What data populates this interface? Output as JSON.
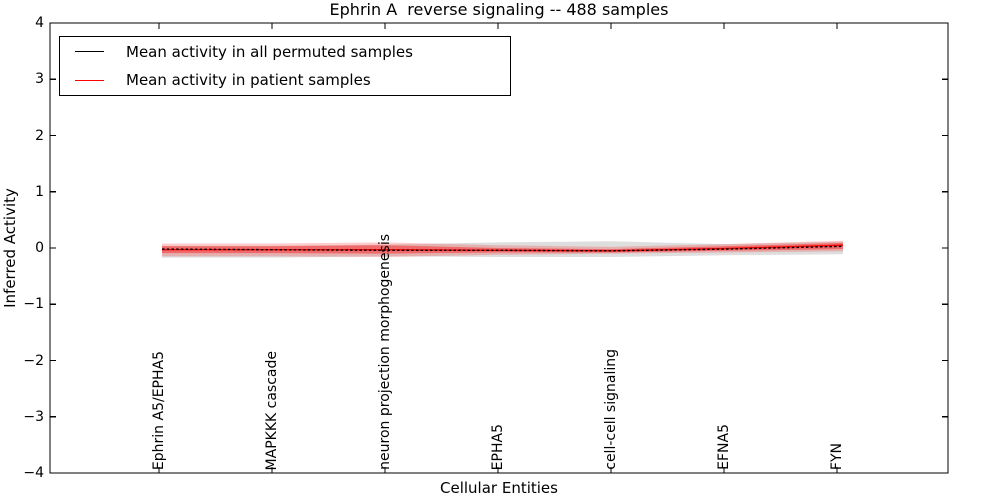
{
  "chart_data": {
    "type": "line",
    "title": "Ephrin A  reverse signaling -- 488 samples",
    "xlabel": "Cellular Entities",
    "ylabel": "Inferred Activity",
    "ylim": [
      -4,
      4
    ],
    "yticks": [
      4,
      3,
      2,
      1,
      0,
      -1,
      -2,
      -3,
      -4
    ],
    "ytick_labels": [
      "4",
      "3",
      "2",
      "1",
      "0",
      "−1",
      "−2",
      "−3",
      "−4"
    ],
    "categories": [
      "Ephrin A5/EPHA5",
      "MAPKKK cascade",
      "neuron projection morphogenesis",
      "EPHA5",
      "cell-cell signaling",
      "EFNA5",
      "FYN"
    ],
    "grid": false,
    "legend": {
      "position": "upper-left",
      "entries": [
        "Mean activity in all permuted samples",
        "Mean activity in patient samples"
      ]
    },
    "series": [
      {
        "name": "Mean activity in all permuted samples",
        "color": "#000000",
        "line_style": "dashed",
        "values": [
          -0.02,
          -0.03,
          -0.04,
          -0.04,
          -0.05,
          -0.02,
          0.03
        ]
      },
      {
        "name": "Mean activity in patient samples",
        "color": "#ff0000",
        "line_style": "solid",
        "values": [
          -0.03,
          -0.03,
          -0.03,
          -0.04,
          -0.05,
          -0.01,
          0.05
        ]
      }
    ],
    "bands": [
      {
        "name": "permuted-samples-spread",
        "color": "#000000",
        "opacity": 0.13,
        "upper": [
          0.04,
          0.04,
          0.06,
          0.1,
          0.12,
          0.07,
          0.11
        ],
        "lower": [
          -0.17,
          -0.17,
          -0.15,
          -0.16,
          -0.16,
          -0.13,
          -0.11
        ]
      },
      {
        "name": "patient-samples-spread-outer",
        "color": "#ff0000",
        "opacity": 0.2,
        "upper": [
          0.08,
          0.08,
          0.1,
          0.05,
          0.02,
          0.07,
          0.13
        ],
        "lower": [
          -0.15,
          -0.15,
          -0.16,
          -0.12,
          -0.1,
          -0.08,
          -0.06
        ]
      },
      {
        "name": "patient-samples-spread-inner",
        "color": "#ff0000",
        "opacity": 0.4,
        "upper": [
          0.03,
          0.03,
          0.05,
          0.0,
          -0.02,
          0.03,
          0.09
        ],
        "lower": [
          -0.09,
          -0.09,
          -0.1,
          -0.08,
          -0.08,
          -0.05,
          -0.02
        ]
      }
    ]
  }
}
